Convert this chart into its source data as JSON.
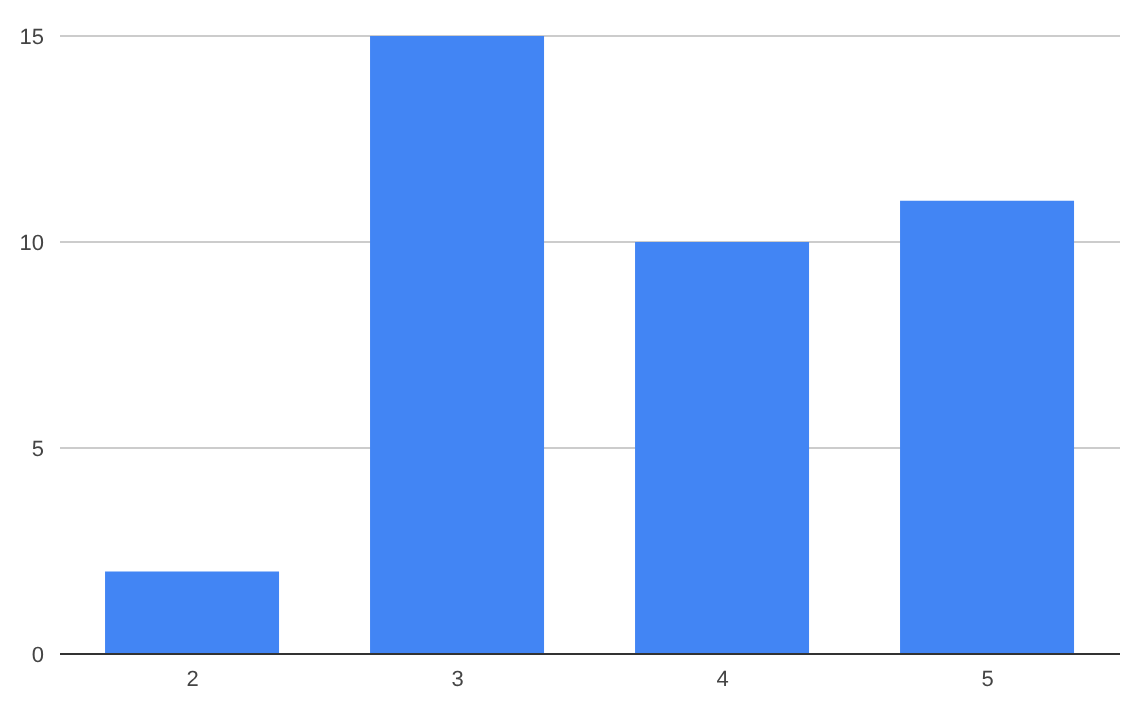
{
  "chart_data": {
    "type": "bar",
    "categories": [
      "2",
      "3",
      "4",
      "5"
    ],
    "values": [
      2,
      15,
      10,
      11
    ],
    "color": "#4285f4",
    "ylim": [
      0,
      15
    ],
    "yticks": [
      0,
      5,
      10,
      15
    ],
    "grid": "y"
  }
}
